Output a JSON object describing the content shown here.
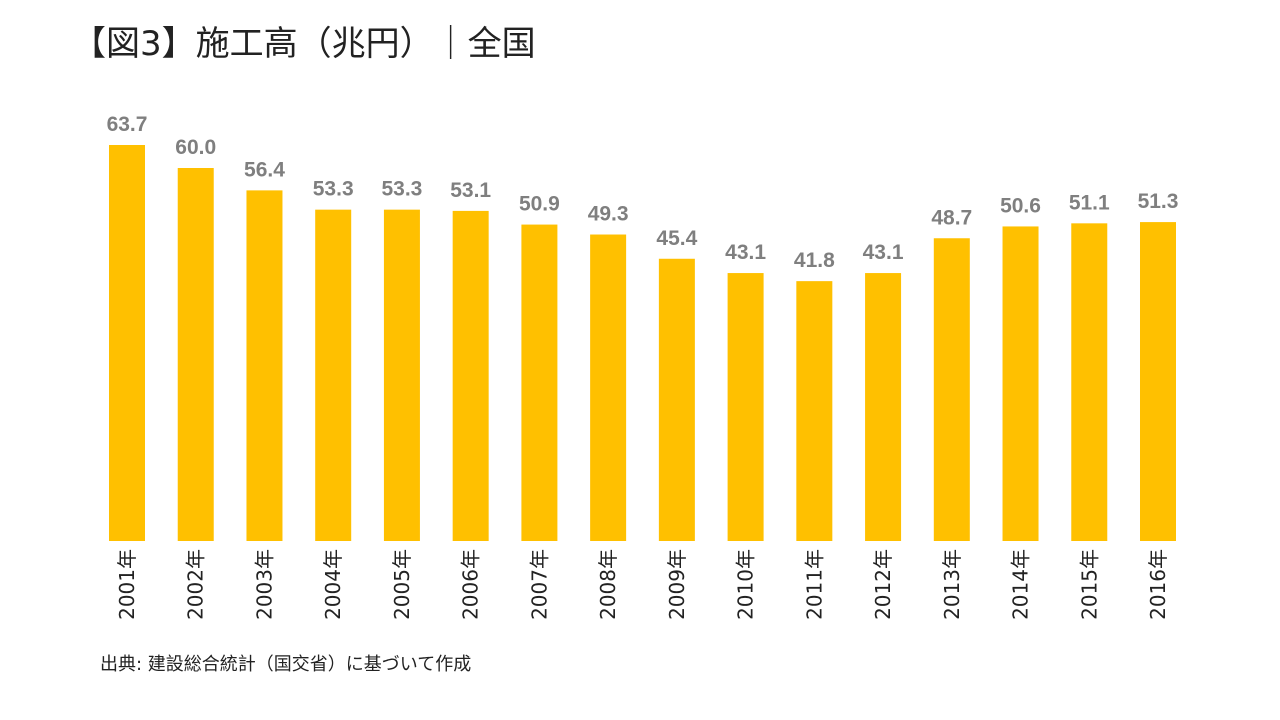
{
  "chart_data": {
    "type": "bar",
    "title": "【図3】施工高（兆円）｜全国",
    "source": "出典: 建設総合統計（国交省）に基づいて作成",
    "categories": [
      "2001年",
      "2002年",
      "2003年",
      "2004年",
      "2005年",
      "2006年",
      "2007年",
      "2008年",
      "2009年",
      "2010年",
      "2011年",
      "2012年",
      "2013年",
      "2014年",
      "2015年",
      "2016年"
    ],
    "values": [
      63.7,
      60.0,
      56.4,
      53.3,
      53.3,
      53.1,
      50.9,
      49.3,
      45.4,
      43.1,
      41.8,
      43.1,
      48.7,
      50.6,
      51.1,
      51.3
    ],
    "data_labels": [
      "63.7",
      "60.0",
      "56.4",
      "53.3",
      "53.3",
      "53.1",
      "50.9",
      "49.3",
      "45.4",
      "43.1",
      "41.8",
      "43.1",
      "48.7",
      "50.6",
      "51.1",
      "51.3"
    ],
    "ylim": [
      0,
      63.7
    ],
    "y_axis_visible": false,
    "grid": false,
    "legend": "none",
    "colors": {
      "bar": "#FFC000",
      "data_label": "#7F7F7F",
      "tick_label": "#222222"
    }
  }
}
